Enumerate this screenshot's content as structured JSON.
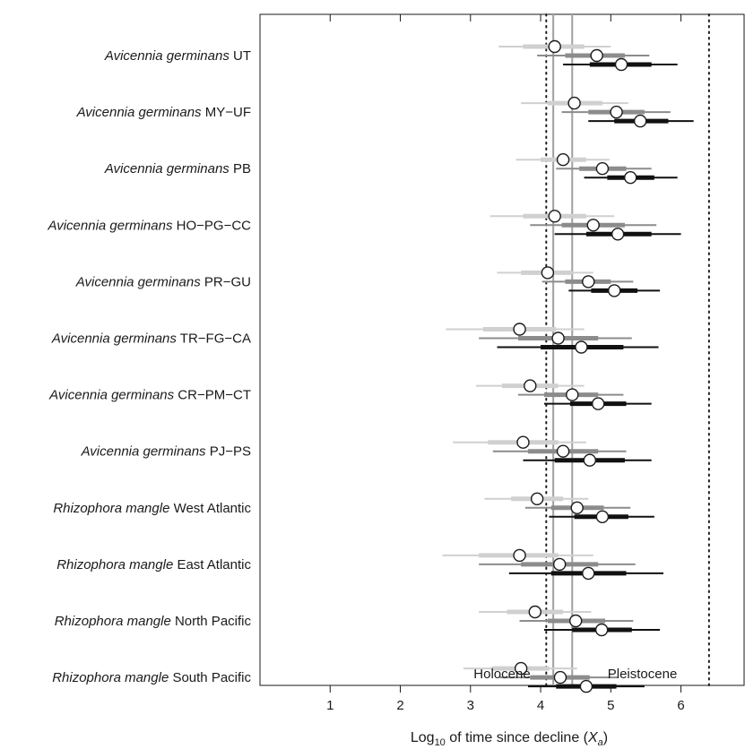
{
  "chart_data": {
    "type": "forest",
    "x_axis": {
      "label_prefix": "Log",
      "label_sub": "10",
      "label_main": " of time since decline (",
      "label_var": "X",
      "label_var_sub": "a",
      "label_end": ")",
      "range": [
        0,
        6.9
      ],
      "ticks": [
        1,
        2,
        3,
        4,
        5,
        6
      ],
      "tick_labels": [
        "1",
        "2",
        "3",
        "4",
        "5",
        "6"
      ]
    },
    "reference_lines": {
      "dotted": [
        4.08,
        6.4
      ],
      "solid_gray": [
        4.18,
        4.45
      ]
    },
    "annotations": [
      {
        "text": "Holocene",
        "x": 3.45
      },
      {
        "text": "Pleistocene",
        "x": 5.45
      }
    ],
    "series": [
      {
        "name": "light",
        "color": "#d0d0d0"
      },
      {
        "name": "medium",
        "color": "#8c8c8c"
      },
      {
        "name": "dark",
        "color": "#111111"
      }
    ],
    "rows": [
      {
        "species": "Avicennia germinans",
        "pop": "UT",
        "estimates": [
          {
            "point": 4.2,
            "thick": [
              3.75,
              4.62
            ],
            "thin": [
              3.4,
              5.0
            ]
          },
          {
            "point": 4.8,
            "thick": [
              4.35,
              5.2
            ],
            "thin": [
              3.95,
              5.55
            ]
          },
          {
            "point": 5.15,
            "thick": [
              4.7,
              5.58
            ],
            "thin": [
              4.32,
              5.95
            ]
          }
        ]
      },
      {
        "species": "Avicennia germinans",
        "pop": "MY−UF",
        "estimates": [
          {
            "point": 4.48,
            "thick": [
              4.1,
              4.88
            ],
            "thin": [
              3.72,
              5.25
            ]
          },
          {
            "point": 5.08,
            "thick": [
              4.68,
              5.48
            ],
            "thin": [
              4.3,
              5.85
            ]
          },
          {
            "point": 5.42,
            "thick": [
              5.05,
              5.82
            ],
            "thin": [
              4.68,
              6.18
            ]
          }
        ]
      },
      {
        "species": "Avicennia germinans",
        "pop": "PB",
        "estimates": [
          {
            "point": 4.32,
            "thick": [
              4.0,
              4.65
            ],
            "thin": [
              3.65,
              4.98
            ]
          },
          {
            "point": 4.88,
            "thick": [
              4.55,
              5.22
            ],
            "thin": [
              4.22,
              5.58
            ]
          },
          {
            "point": 5.28,
            "thick": [
              4.95,
              5.62
            ],
            "thin": [
              4.62,
              5.95
            ]
          }
        ]
      },
      {
        "species": "Avicennia germinans",
        "pop": "HO−PG−CC",
        "estimates": [
          {
            "point": 4.2,
            "thick": [
              3.75,
              4.65
            ],
            "thin": [
              3.28,
              5.05
            ]
          },
          {
            "point": 4.75,
            "thick": [
              4.3,
              5.2
            ],
            "thin": [
              3.85,
              5.65
            ]
          },
          {
            "point": 5.1,
            "thick": [
              4.65,
              5.58
            ],
            "thin": [
              4.2,
              6.0
            ]
          }
        ]
      },
      {
        "species": "Avicennia germinans",
        "pop": "PR−GU",
        "estimates": [
          {
            "point": 4.1,
            "thick": [
              3.72,
              4.45
            ],
            "thin": [
              3.38,
              4.75
            ]
          },
          {
            "point": 4.68,
            "thick": [
              4.35,
              5.0
            ],
            "thin": [
              4.02,
              5.32
            ]
          },
          {
            "point": 5.05,
            "thick": [
              4.72,
              5.38
            ],
            "thin": [
              4.4,
              5.7
            ]
          }
        ]
      },
      {
        "species": "Avicennia germinans",
        "pop": "TR−FG−CA",
        "estimates": [
          {
            "point": 3.7,
            "thick": [
              3.18,
              4.22
            ],
            "thin": [
              2.65,
              4.62
            ]
          },
          {
            "point": 4.25,
            "thick": [
              3.68,
              4.82
            ],
            "thin": [
              3.12,
              5.3
            ]
          },
          {
            "point": 4.58,
            "thick": [
              4.0,
              5.18
            ],
            "thin": [
              3.38,
              5.68
            ]
          }
        ]
      },
      {
        "species": "Avicennia germinans",
        "pop": "CR−PM−CT",
        "estimates": [
          {
            "point": 3.85,
            "thick": [
              3.45,
              4.25
            ],
            "thin": [
              3.08,
              4.62
            ]
          },
          {
            "point": 4.45,
            "thick": [
              4.05,
              4.82
            ],
            "thin": [
              3.68,
              5.18
            ]
          },
          {
            "point": 4.82,
            "thick": [
              4.42,
              5.22
            ],
            "thin": [
              4.05,
              5.58
            ]
          }
        ]
      },
      {
        "species": "Avicennia germinans",
        "pop": "PJ−PS",
        "estimates": [
          {
            "point": 3.75,
            "thick": [
              3.25,
              4.25
            ],
            "thin": [
              2.75,
              4.65
            ]
          },
          {
            "point": 4.32,
            "thick": [
              3.82,
              4.82
            ],
            "thin": [
              3.32,
              5.22
            ]
          },
          {
            "point": 4.7,
            "thick": [
              4.2,
              5.2
            ],
            "thin": [
              3.75,
              5.58
            ]
          }
        ]
      },
      {
        "species": "Rhizophora mangle",
        "pop": "West Atlantic",
        "estimates": [
          {
            "point": 3.95,
            "thick": [
              3.58,
              4.32
            ],
            "thin": [
              3.2,
              4.68
            ]
          },
          {
            "point": 4.52,
            "thick": [
              4.15,
              4.9
            ],
            "thin": [
              3.78,
              5.28
            ]
          },
          {
            "point": 4.88,
            "thick": [
              4.48,
              5.25
            ],
            "thin": [
              4.12,
              5.62
            ]
          }
        ]
      },
      {
        "species": "Rhizophora mangle",
        "pop": "East Atlantic",
        "estimates": [
          {
            "point": 3.7,
            "thick": [
              3.12,
              4.25
            ],
            "thin": [
              2.6,
              4.75
            ]
          },
          {
            "point": 4.27,
            "thick": [
              3.72,
              4.82
            ],
            "thin": [
              3.12,
              5.35
            ]
          },
          {
            "point": 4.68,
            "thick": [
              4.15,
              5.22
            ],
            "thin": [
              3.55,
              5.75
            ]
          }
        ]
      },
      {
        "species": "Rhizophora mangle",
        "pop": "North Pacific",
        "estimates": [
          {
            "point": 3.92,
            "thick": [
              3.52,
              4.32
            ],
            "thin": [
              3.12,
              4.72
            ]
          },
          {
            "point": 4.5,
            "thick": [
              4.1,
              4.92
            ],
            "thin": [
              3.7,
              5.32
            ]
          },
          {
            "point": 4.87,
            "thick": [
              4.45,
              5.3
            ],
            "thin": [
              4.05,
              5.7
            ]
          }
        ]
      },
      {
        "species": "Rhizophora mangle",
        "pop": "South Pacific",
        "estimates": [
          {
            "point": 3.72,
            "thick": [
              3.3,
              4.12
            ],
            "thin": [
              2.9,
              4.52
            ]
          },
          {
            "point": 4.28,
            "thick": [
              3.85,
              4.7
            ],
            "thin": [
              3.42,
              5.1
            ]
          },
          {
            "point": 4.65,
            "thick": [
              4.22,
              5.08
            ],
            "thin": [
              3.82,
              5.48
            ]
          }
        ]
      }
    ]
  }
}
